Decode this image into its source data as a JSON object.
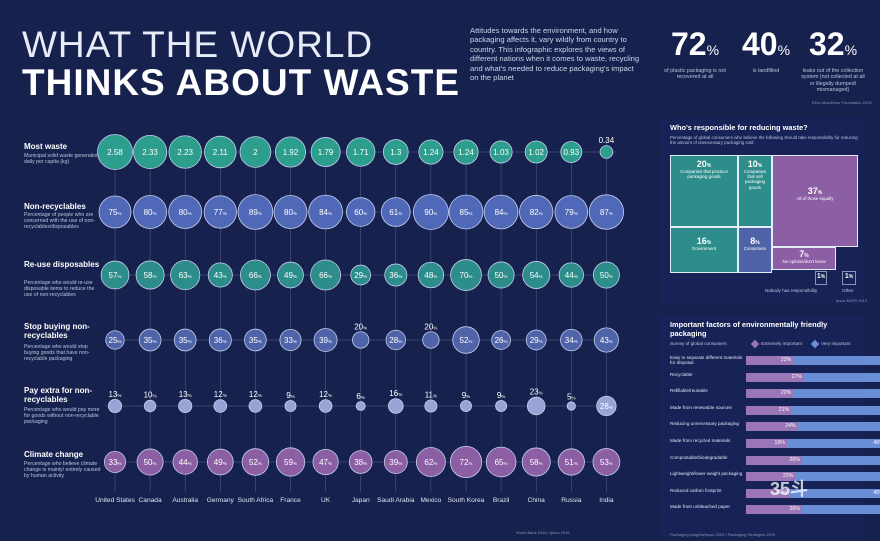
{
  "title": {
    "line1": "WHAT THE WORLD",
    "line2": "THINKS ABOUT WASTE"
  },
  "intro": "Attitudes towards the environment, and how packaging affects it, vary wildly from country to country. This infographic explores the views of different nations when it comes to waste, recycling and what's needed to reduce packaging's impact on the planet",
  "headline_stats": [
    {
      "value": "72",
      "unit": "%",
      "caption": "of plastic packaging is not recovered at all"
    },
    {
      "value": "40",
      "unit": "%",
      "caption": "is landfilled"
    },
    {
      "value": "32",
      "unit": "%",
      "caption": "leaks out of the collection system (not collected at all or illegally dumped/ mismanaged)"
    }
  ],
  "stats_source": "Ellen MacArthur Foundation 2016",
  "bottom_source": "World Bank 2018 / Ipsos 2019",
  "chart_data": {
    "type": "table",
    "countries": [
      "United States",
      "Canada",
      "Australia",
      "Germany",
      "South Africa",
      "France",
      "UK",
      "Japan",
      "Saudi Arabia",
      "Mexico",
      "South Korea",
      "Brazil",
      "China",
      "Russia",
      "India"
    ],
    "rows": [
      {
        "key": "waste",
        "title": "Most waste",
        "description": "Municipal solid waste generation daily per capita (kg)",
        "unit": "",
        "color": "#2d9d8d",
        "values": [
          2.58,
          2.33,
          2.23,
          2.11,
          2,
          1.92,
          1.79,
          1.71,
          1.3,
          1.24,
          1.24,
          1.03,
          1.02,
          0.93,
          0.34
        ],
        "labels": [
          "2.58",
          "2.33",
          "2.23",
          "2.11",
          "2",
          "1.92",
          "1.79",
          "1.71",
          "1.3",
          "1.24",
          "1.24",
          "1.03",
          "1.02",
          "0.93",
          "0.34"
        ]
      },
      {
        "key": "nonrecyclables",
        "title": "Non-recyclables",
        "description": "Percentage of people who are concerned with the use of non-recyclables/disposables",
        "unit": "%",
        "color": "#5068b8",
        "values": [
          75,
          80,
          80,
          77,
          89,
          80,
          84,
          60,
          61,
          90,
          85,
          84,
          82,
          79,
          87
        ]
      },
      {
        "key": "reuse",
        "title": "Re-use disposables",
        "description": "Percentage who would re-use disposable items to reduce the use of non-recyclables",
        "unit": "%",
        "color": "#2d8d8a",
        "values": [
          57,
          58,
          63,
          43,
          66,
          49,
          66,
          29,
          36,
          48,
          70,
          50,
          54,
          44,
          50
        ]
      },
      {
        "key": "stopbuying",
        "title": "Stop buying non-recyclables",
        "description": "Percentage who would stop buying goods that have non-recyclable packaging",
        "unit": "%",
        "color": "#4e63a8",
        "values": [
          25,
          35,
          35,
          36,
          35,
          33,
          39,
          20,
          28,
          20,
          52,
          26,
          29,
          34,
          43
        ]
      },
      {
        "key": "payextra",
        "title": "Pay extra for non-recyclables",
        "description": "Percentage who would pay more for goods without non-recyclable packaging",
        "unit": "%",
        "color": "#9aa3d6",
        "values": [
          13,
          10,
          13,
          12,
          12,
          9,
          12,
          6,
          16,
          11,
          9,
          9,
          23,
          5,
          28
        ]
      },
      {
        "key": "climate",
        "title": "Climate change",
        "description": "Percentage who believe climate change is mainly/ entirely caused by human activity",
        "unit": "%",
        "color": "#8c5fa4",
        "values": [
          33,
          50,
          44,
          49,
          52,
          59,
          47,
          38,
          39,
          62,
          72,
          65,
          58,
          51,
          53
        ]
      }
    ]
  },
  "responsibility": {
    "title": "Who's responsible for reducing waste?",
    "subtitle": "Percentage of global consumers who believe the following should take responsibility for reducing the amount of unnecessary packaging sold",
    "items": [
      {
        "value": "20",
        "label": "Companies that produce packaging goods"
      },
      {
        "value": "10",
        "label": "Companies that sell packaging goods"
      },
      {
        "value": "37",
        "label": "All of those equally"
      },
      {
        "value": "16",
        "label": "Government"
      },
      {
        "value": "8",
        "label": "Consumers"
      },
      {
        "value": "7",
        "label": "No opinion/don't know"
      },
      {
        "value": "1",
        "label": "Nobody has responsibility"
      },
      {
        "value": "1",
        "label": "Other"
      }
    ],
    "source": "Ipsos MORI 2019"
  },
  "factors": {
    "title": "Important factors of environmentally friendly packaging",
    "survey_label": "Survey of global consumers",
    "legend_a": "Extremely important",
    "legend_b": "Very important",
    "items": [
      {
        "label": "Easy to separate different materials for disposal",
        "a": 22,
        "b": 49
      },
      {
        "label": "Recyclable",
        "a": 27,
        "b": 47
      },
      {
        "label": "Refillable/reusable",
        "a": 22,
        "b": 47
      },
      {
        "label": "Made from renewable sources",
        "a": 21,
        "b": 47
      },
      {
        "label": "Reducing unnecessary packaging",
        "a": 24,
        "b": 46
      },
      {
        "label": "Made from recycled materials",
        "a": 19,
        "b": 46
      },
      {
        "label": "Compostable/biodegradable",
        "a": 26,
        "b": 46
      },
      {
        "label": "Lightweight/lower weight packaging",
        "a": 23,
        "b": 45
      },
      {
        "label": "Reduced carbon footprint",
        "a": 20,
        "b": 45
      },
      {
        "label": "Made from unbleached paper",
        "a": 26,
        "b": 45
      }
    ],
    "source": "Packaging Insights/Ipsos 2019 / Packaging Strategies 2019"
  },
  "watermark": "35斗"
}
